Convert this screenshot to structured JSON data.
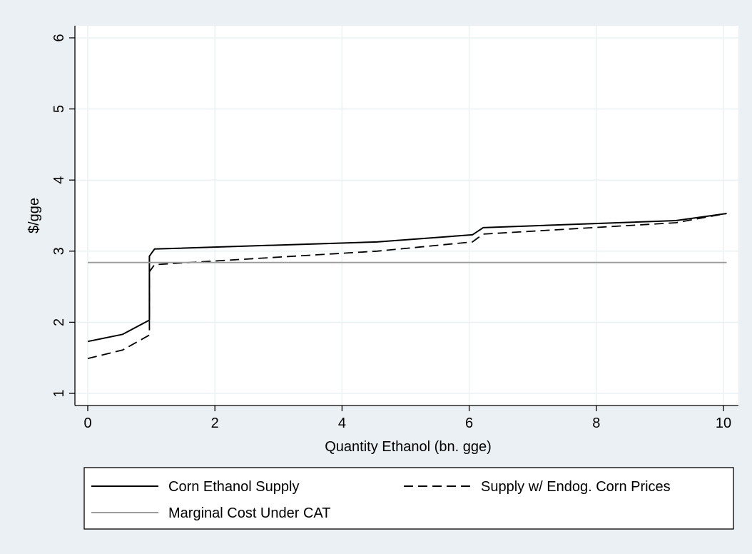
{
  "chart_data": {
    "type": "line",
    "title": "",
    "xlabel": "Quantity Ethanol (bn. gge)",
    "ylabel": "$/gge",
    "xlim": [
      0,
      10.1
    ],
    "ylim": [
      1,
      6
    ],
    "x_ticks": [
      0,
      2,
      4,
      6,
      8,
      10
    ],
    "y_ticks": [
      1,
      2,
      3,
      4,
      5,
      6
    ],
    "grid": true,
    "legend_position": "bottom",
    "series": [
      {
        "name": "Corn Ethanol Supply",
        "color": "#000000",
        "style": "solid",
        "points": [
          [
            0,
            1.73
          ],
          [
            0.55,
            1.83
          ],
          [
            0.97,
            2.03
          ],
          [
            0.97,
            2.93
          ],
          [
            1.05,
            3.03
          ],
          [
            4.55,
            3.13
          ],
          [
            6.05,
            3.23
          ],
          [
            6.22,
            3.33
          ],
          [
            9.25,
            3.43
          ],
          [
            10.05,
            3.53
          ]
        ]
      },
      {
        "name": "Supply w/ Endog. Corn Prices",
        "color": "#000000",
        "style": "dashed",
        "points": [
          [
            0,
            1.49
          ],
          [
            0.55,
            1.61
          ],
          [
            0.97,
            1.82
          ],
          [
            0.97,
            2.71
          ],
          [
            1.05,
            2.81
          ],
          [
            4.55,
            3.0
          ],
          [
            6.05,
            3.13
          ],
          [
            6.22,
            3.24
          ],
          [
            9.25,
            3.4
          ],
          [
            10.05,
            3.53
          ]
        ]
      },
      {
        "name": "Marginal Cost Under CAT",
        "color": "#9a9a9a",
        "style": "solid",
        "points": [
          [
            0,
            2.84
          ],
          [
            10.05,
            2.84
          ]
        ]
      }
    ],
    "legend": {
      "col1": [
        "Corn Ethanol Supply",
        "Marginal Cost Under CAT"
      ],
      "col2": [
        "Supply w/ Endog. Corn Prices"
      ]
    }
  }
}
